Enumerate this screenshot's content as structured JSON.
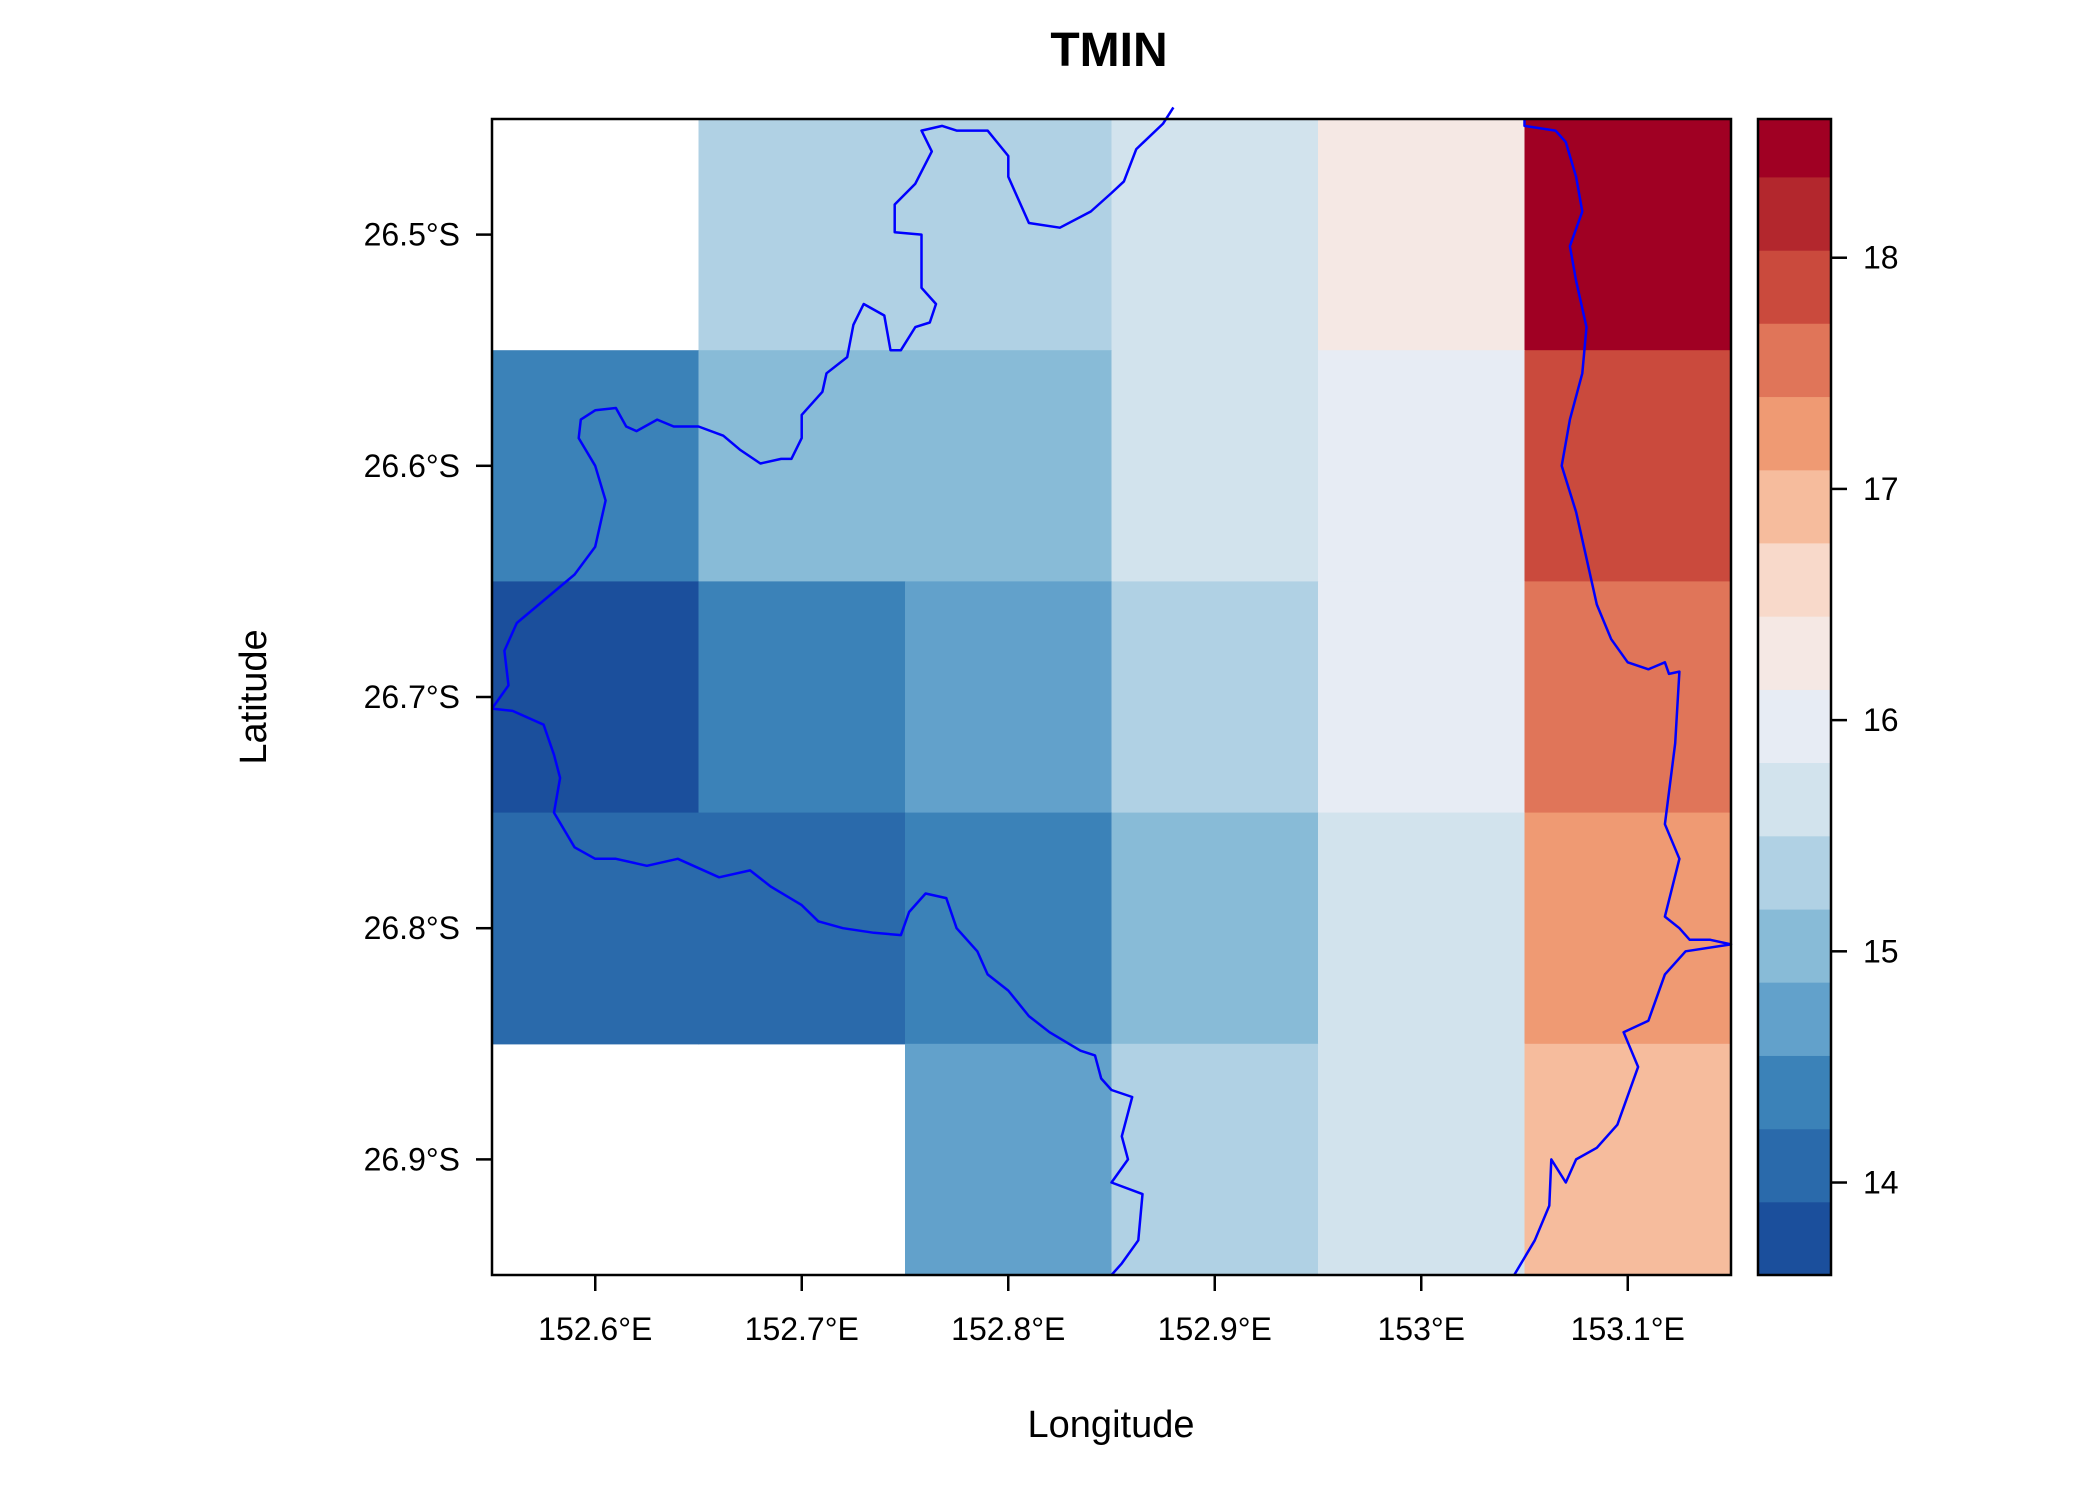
{
  "chart_data": {
    "type": "heatmap",
    "title": "TMIN",
    "xlabel": "Longitude",
    "ylabel": "Latitude",
    "x_ticks": [
      "152.6°E",
      "152.7°E",
      "152.8°E",
      "152.9°E",
      "153°E",
      "153.1°E"
    ],
    "x_tick_values": [
      152.6,
      152.7,
      152.8,
      152.9,
      153.0,
      153.1
    ],
    "y_ticks": [
      "26.5°S",
      "26.6°S",
      "26.7°S",
      "26.8°S",
      "26.9°S"
    ],
    "y_tick_values": [
      -26.5,
      -26.6,
      -26.7,
      -26.8,
      -26.9
    ],
    "xlim": [
      152.55,
      153.15
    ],
    "ylim": [
      -26.95,
      -26.45
    ],
    "grid": false,
    "legend": "right",
    "x_centers": [
      152.6,
      152.7,
      152.8,
      152.9,
      153.0,
      153.1
    ],
    "y_centers": [
      -26.5,
      -26.6,
      -26.7,
      -26.8,
      -26.9
    ],
    "values": [
      [
        null,
        15.3,
        15.3,
        15.6,
        16.3,
        18.5
      ],
      [
        14.4,
        15.0,
        15.0,
        15.6,
        15.9,
        17.8
      ],
      [
        13.8,
        14.4,
        14.7,
        15.3,
        15.9,
        17.5
      ],
      [
        14.1,
        14.1,
        14.4,
        15.0,
        15.6,
        17.2
      ],
      [
        null,
        null,
        14.7,
        15.3,
        15.6,
        16.9
      ]
    ],
    "colorbar": {
      "range": [
        13.6,
        18.6
      ],
      "ticks": [
        14,
        15,
        16,
        17,
        18
      ],
      "tick_labels": [
        "14",
        "15",
        "16",
        "17",
        "18"
      ],
      "bin_edges": [
        13.6,
        13.917,
        14.233,
        14.55,
        14.867,
        15.183,
        15.5,
        15.817,
        16.133,
        16.45,
        16.767,
        17.083,
        17.4,
        17.717,
        18.033,
        18.35,
        18.6
      ],
      "colors": [
        "#1b4f9c",
        "#2a6aab",
        "#3b82b8",
        "#62a1cb",
        "#88bbd7",
        "#b0d1e4",
        "#d2e3ed",
        "#e7ecf4",
        "#f5e8e4",
        "#f8d9ca",
        "#f6bc9d",
        "#ef9a73",
        "#e07559",
        "#ca4a3d",
        "#b3272d",
        "#a00023"
      ]
    },
    "boundary_color": "#0000ff",
    "boundary_lonlat": [
      [
        152.55,
        -26.705
      ],
      [
        152.558,
        -26.695
      ],
      [
        152.556,
        -26.68
      ],
      [
        152.562,
        -26.668
      ],
      [
        152.59,
        -26.647
      ],
      [
        152.6,
        -26.635
      ],
      [
        152.605,
        -26.615
      ],
      [
        152.6,
        -26.6
      ],
      [
        152.592,
        -26.588
      ],
      [
        152.593,
        -26.58
      ],
      [
        152.6,
        -26.576
      ],
      [
        152.61,
        -26.575
      ],
      [
        152.615,
        -26.583
      ],
      [
        152.62,
        -26.585
      ],
      [
        152.63,
        -26.58
      ],
      [
        152.638,
        -26.583
      ],
      [
        152.65,
        -26.583
      ],
      [
        152.662,
        -26.587
      ],
      [
        152.67,
        -26.593
      ],
      [
        152.68,
        -26.599
      ],
      [
        152.69,
        -26.597
      ],
      [
        152.695,
        -26.597
      ],
      [
        152.7,
        -26.588
      ],
      [
        152.7,
        -26.578
      ],
      [
        152.71,
        -26.568
      ],
      [
        152.712,
        -26.56
      ],
      [
        152.722,
        -26.553
      ],
      [
        152.725,
        -26.539
      ],
      [
        152.73,
        -26.53
      ],
      [
        152.74,
        -26.535
      ],
      [
        152.743,
        -26.55
      ],
      [
        152.748,
        -26.55
      ],
      [
        152.755,
        -26.54
      ],
      [
        152.762,
        -26.538
      ],
      [
        152.765,
        -26.53
      ],
      [
        152.758,
        -26.523
      ],
      [
        152.758,
        -26.5
      ],
      [
        152.745,
        -26.499
      ],
      [
        152.745,
        -26.487
      ],
      [
        152.755,
        -26.478
      ],
      [
        152.763,
        -26.464
      ],
      [
        152.758,
        -26.455
      ],
      [
        152.768,
        -26.453
      ],
      [
        152.775,
        -26.455
      ],
      [
        152.79,
        -26.455
      ],
      [
        152.8,
        -26.466
      ],
      [
        152.8,
        -26.475
      ],
      [
        152.81,
        -26.495
      ],
      [
        152.825,
        -26.497
      ],
      [
        152.84,
        -26.49
      ],
      [
        152.85,
        -26.482
      ],
      [
        152.856,
        -26.477
      ],
      [
        152.862,
        -26.463
      ],
      [
        152.875,
        -26.452
      ],
      [
        152.88,
        -26.445
      ]
    ],
    "boundary_lonlat_south": [
      [
        152.55,
        -26.705
      ],
      [
        152.56,
        -26.706
      ],
      [
        152.575,
        -26.712
      ],
      [
        152.58,
        -26.725
      ],
      [
        152.583,
        -26.735
      ],
      [
        152.58,
        -26.75
      ],
      [
        152.59,
        -26.765
      ],
      [
        152.6,
        -26.77
      ],
      [
        152.61,
        -26.77
      ],
      [
        152.625,
        -26.773
      ],
      [
        152.64,
        -26.77
      ],
      [
        152.66,
        -26.778
      ],
      [
        152.675,
        -26.775
      ],
      [
        152.685,
        -26.782
      ],
      [
        152.7,
        -26.79
      ],
      [
        152.708,
        -26.797
      ],
      [
        152.72,
        -26.8
      ],
      [
        152.735,
        -26.802
      ],
      [
        152.748,
        -26.803
      ],
      [
        152.752,
        -26.793
      ],
      [
        152.76,
        -26.785
      ],
      [
        152.77,
        -26.787
      ],
      [
        152.775,
        -26.8
      ],
      [
        152.785,
        -26.81
      ],
      [
        152.79,
        -26.82
      ],
      [
        152.8,
        -26.827
      ],
      [
        152.81,
        -26.838
      ],
      [
        152.82,
        -26.845
      ],
      [
        152.835,
        -26.853
      ],
      [
        152.842,
        -26.855
      ],
      [
        152.845,
        -26.865
      ],
      [
        152.85,
        -26.87
      ],
      [
        152.86,
        -26.873
      ],
      [
        152.855,
        -26.89
      ],
      [
        152.858,
        -26.9
      ],
      [
        152.85,
        -26.91
      ],
      [
        152.865,
        -26.915
      ],
      [
        152.863,
        -26.935
      ],
      [
        152.855,
        -26.945
      ],
      [
        152.85,
        -26.95
      ]
    ],
    "coast_lonlat": [
      [
        153.05,
        -26.45
      ],
      [
        153.05,
        -26.453
      ],
      [
        153.065,
        -26.455
      ],
      [
        153.07,
        -26.46
      ],
      [
        153.075,
        -26.475
      ],
      [
        153.078,
        -26.49
      ],
      [
        153.072,
        -26.505
      ],
      [
        153.075,
        -26.52
      ],
      [
        153.08,
        -26.54
      ],
      [
        153.078,
        -26.56
      ],
      [
        153.072,
        -26.58
      ],
      [
        153.068,
        -26.6
      ],
      [
        153.075,
        -26.62
      ],
      [
        153.08,
        -26.64
      ],
      [
        153.085,
        -26.66
      ],
      [
        153.092,
        -26.675
      ],
      [
        153.1,
        -26.685
      ],
      [
        153.11,
        -26.688
      ],
      [
        153.118,
        -26.685
      ],
      [
        153.12,
        -26.69
      ],
      [
        153.125,
        -26.689
      ],
      [
        153.123,
        -26.72
      ],
      [
        153.118,
        -26.755
      ],
      [
        153.125,
        -26.77
      ],
      [
        153.118,
        -26.795
      ],
      [
        153.125,
        -26.8
      ],
      [
        153.13,
        -26.805
      ],
      [
        153.14,
        -26.805
      ],
      [
        153.15,
        -26.807
      ],
      [
        153.128,
        -26.81
      ],
      [
        153.118,
        -26.82
      ],
      [
        153.11,
        -26.84
      ],
      [
        153.098,
        -26.845
      ],
      [
        153.105,
        -26.86
      ],
      [
        153.095,
        -26.885
      ],
      [
        153.085,
        -26.895
      ],
      [
        153.075,
        -26.9
      ],
      [
        153.07,
        -26.91
      ],
      [
        153.063,
        -26.9
      ],
      [
        153.062,
        -26.92
      ],
      [
        153.055,
        -26.935
      ],
      [
        153.045,
        -26.95
      ]
    ]
  }
}
